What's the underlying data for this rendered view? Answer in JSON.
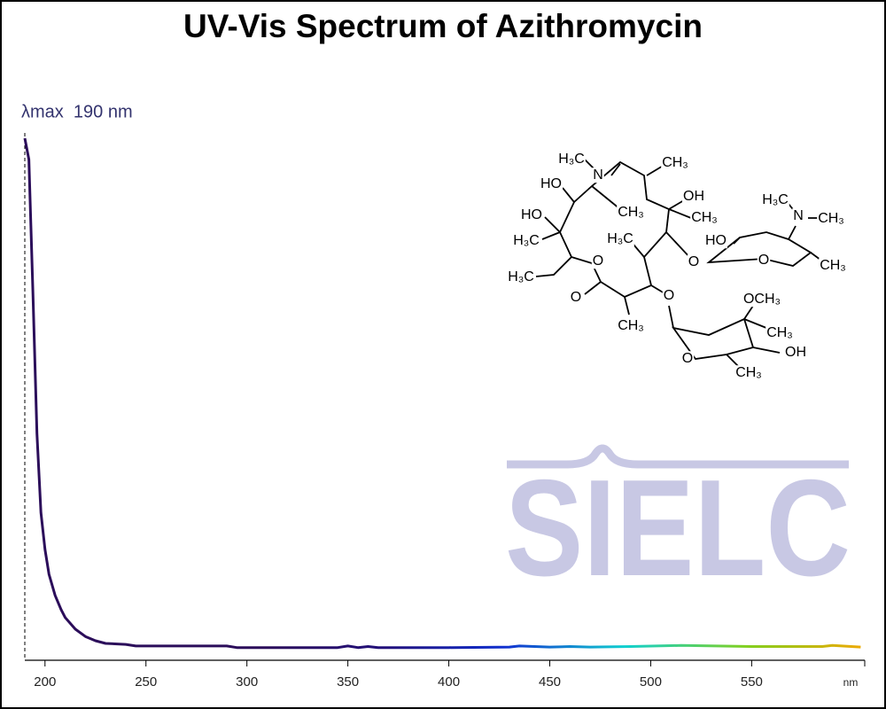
{
  "chart_data": {
    "type": "line",
    "title": "UV-Vis Spectrum of Azithromycin",
    "annotation": "λmax  190 nm",
    "lambda_max": 190,
    "x_label": "nm",
    "x": [
      190,
      192,
      194,
      196,
      198,
      200,
      202,
      205,
      208,
      210,
      215,
      220,
      225,
      230,
      240,
      245,
      290,
      295,
      300,
      345,
      350,
      355,
      360,
      365,
      400,
      430,
      435,
      450,
      460,
      470,
      490,
      515,
      550,
      585,
      590,
      604
    ],
    "values": [
      0.99,
      0.95,
      0.7,
      0.43,
      0.28,
      0.21,
      0.163,
      0.123,
      0.096,
      0.081,
      0.059,
      0.045,
      0.037,
      0.032,
      0.03,
      0.027,
      0.027,
      0.024,
      0.024,
      0.024,
      0.027,
      0.024,
      0.026,
      0.024,
      0.024,
      0.025,
      0.027,
      0.025,
      0.026,
      0.025,
      0.026,
      0.028,
      0.026,
      0.026,
      0.028,
      0.025
    ],
    "colors": [
      "#2b0d5a",
      "#2b0d5a",
      "#2b0d5a",
      "#22107a",
      "#1030d0",
      "#10d0d0",
      "#80d020",
      "#f0a800"
    ],
    "xlim": [
      190,
      606
    ],
    "ylim": [
      0,
      1
    ],
    "xticks": [
      200,
      250,
      300,
      350,
      400,
      450,
      500,
      550
    ],
    "structure_labels": [
      "H₃C",
      "N",
      "CH₃",
      "HO",
      "OH",
      "CH₃",
      "CH₃",
      "HO",
      "H₃C",
      "H₃C",
      "HO",
      "H₃C",
      "N",
      "CH₃",
      "O",
      "CH₃",
      "O",
      "H₃C",
      "O",
      "O",
      "O",
      "CH₃",
      "OCH₃",
      "CH₃",
      "O",
      "OH",
      "CH₃"
    ],
    "watermark": "SIELC"
  }
}
